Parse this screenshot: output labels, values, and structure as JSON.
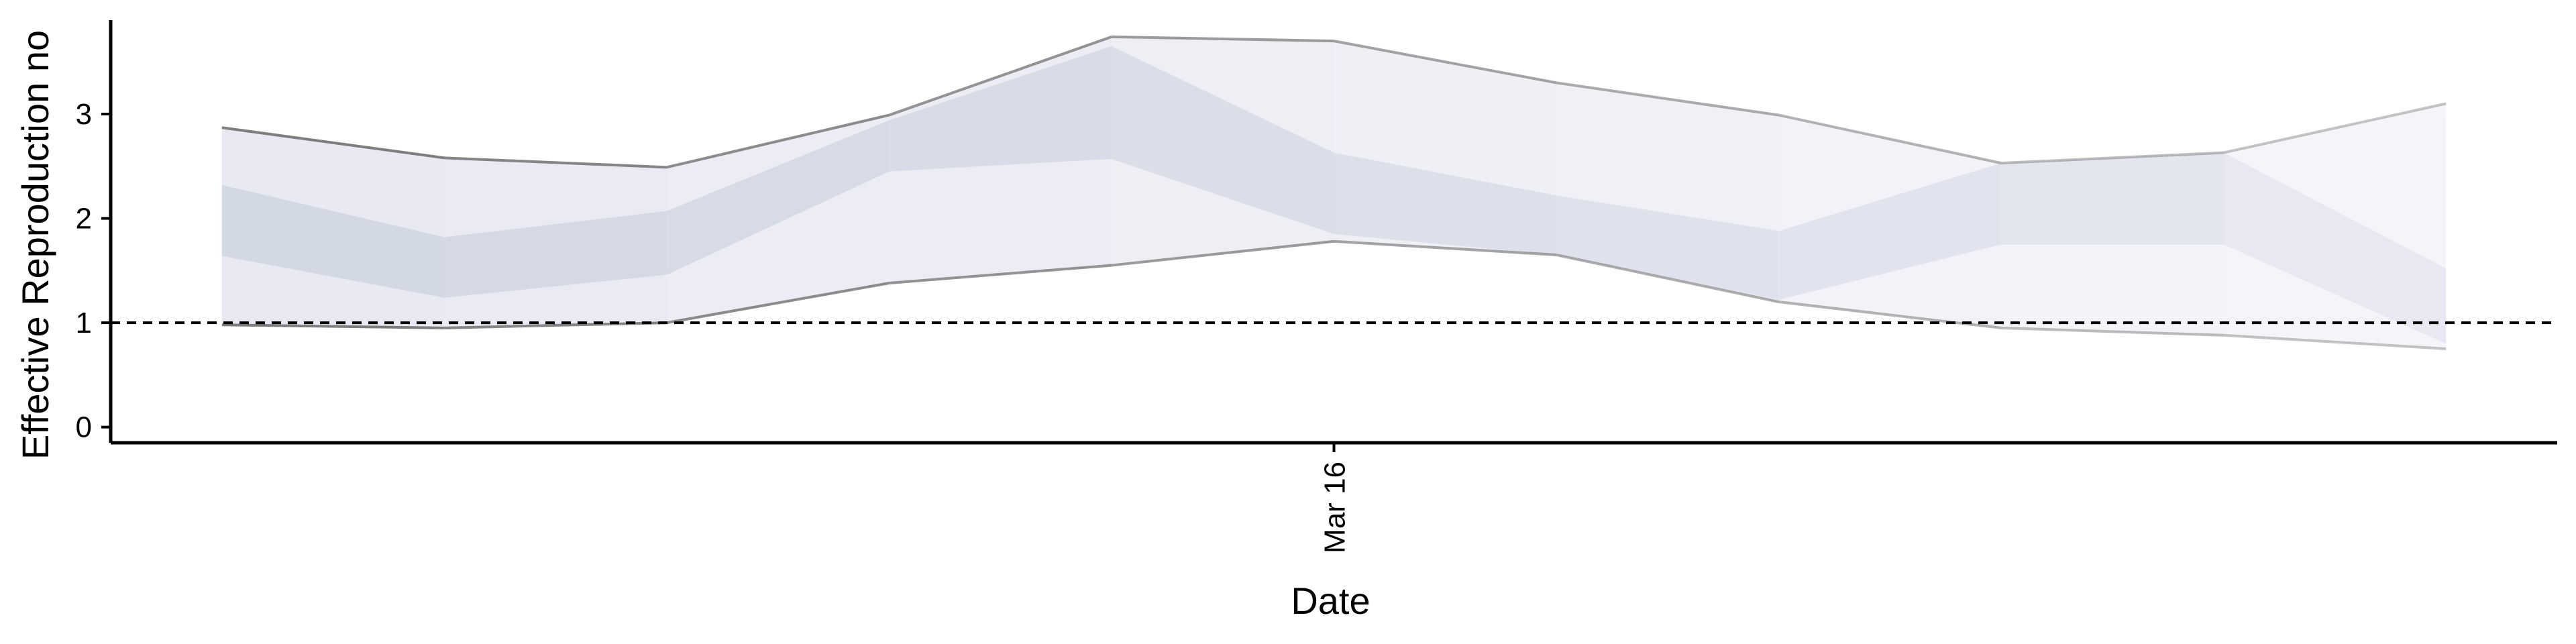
{
  "chart_data": {
    "type": "area",
    "title": "",
    "xlabel": "Date",
    "ylabel": "Effective Reproduction no",
    "x": [
      0,
      1,
      2,
      3,
      4,
      5,
      6,
      7,
      8,
      9,
      10
    ],
    "x_tick_positions": [
      5
    ],
    "x_tick_labels": [
      "Mar 16"
    ],
    "y_ticks": [
      0,
      1,
      2,
      3
    ],
    "y_tick_labels": [
      "0",
      "1",
      "2",
      "3"
    ],
    "xlim": [
      -0.5,
      10.5
    ],
    "ylim": [
      -0.15,
      3.9
    ],
    "reference_line": 1,
    "grid": false,
    "series": [
      {
        "outer_upper": [
          2.87,
          2.58,
          2.49,
          2.99,
          3.74,
          3.7,
          3.3,
          2.99,
          2.53,
          2.63,
          3.1
        ],
        "outer_lower": [
          0.98,
          0.95,
          1.0,
          1.38,
          1.55,
          1.78,
          1.65,
          1.2,
          0.95,
          0.88,
          0.75
        ],
        "inner_upper": [
          2.32,
          1.82,
          2.07,
          2.94,
          3.65,
          2.63,
          2.22,
          1.88,
          2.53,
          2.63,
          1.52
        ],
        "inner_lower": [
          1.64,
          1.24,
          1.46,
          2.45,
          2.57,
          1.85,
          1.65,
          1.22,
          1.75,
          1.75,
          0.8
        ]
      }
    ],
    "colors": {
      "outer_band": "#e8e9f2",
      "inner_band": "#ccd1e0",
      "edge_line": "#777777",
      "reference_line": "#000000",
      "axis": "#000000"
    }
  }
}
